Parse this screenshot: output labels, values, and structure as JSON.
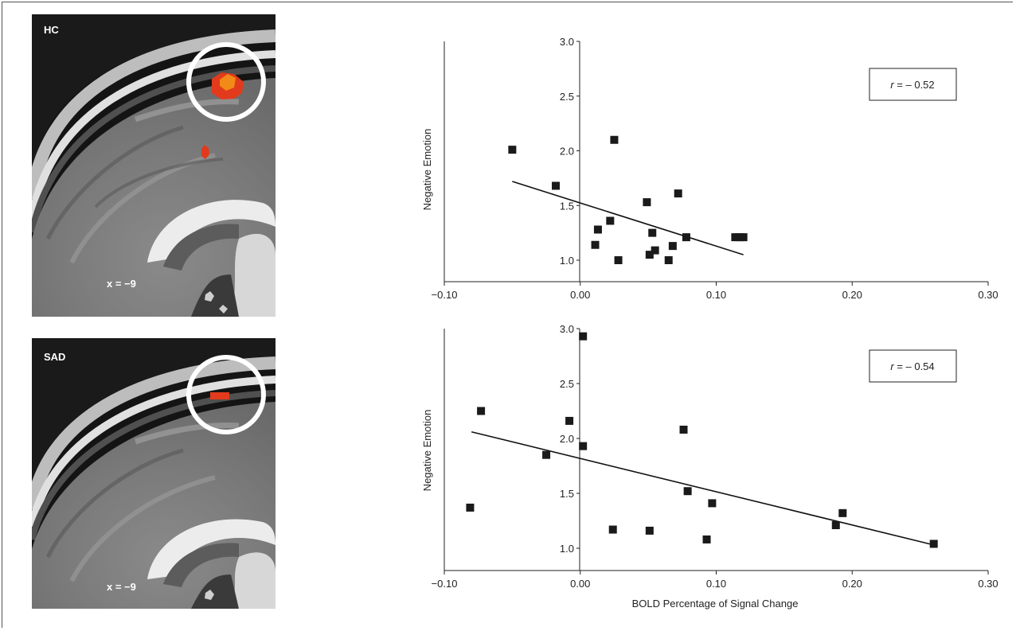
{
  "panels": [
    {
      "group_label": "HC",
      "coord_label": "x = −9"
    },
    {
      "group_label": "SAD",
      "coord_label": "x = −9"
    }
  ],
  "colors": {
    "activation_red": "#e23a1c",
    "activation_orange": "#f28a18",
    "marker": "#1a1a1a",
    "circle": "#ffffff"
  },
  "chart_data": [
    {
      "type": "scatter",
      "title": "",
      "group": "HC",
      "xlabel": "",
      "ylabel": "Negative Emotion",
      "xlim": [
        -0.1,
        0.3
      ],
      "ylim": [
        1.0,
        3.0
      ],
      "x_ticks": [
        "−0.10",
        "0.00",
        "0.10",
        "0.20",
        "0.30"
      ],
      "y_ticks": [
        "1.0",
        "1.5",
        "2.0",
        "2.5",
        "3.0"
      ],
      "annotation_prefix": "r",
      "annotation_value": " = – 0.52",
      "r": -0.52,
      "points": [
        [
          -0.05,
          2.01
        ],
        [
          -0.018,
          1.68
        ],
        [
          0.025,
          2.1
        ],
        [
          0.072,
          1.61
        ],
        [
          0.049,
          1.53
        ],
        [
          0.022,
          1.36
        ],
        [
          0.013,
          1.28
        ],
        [
          0.053,
          1.25
        ],
        [
          0.078,
          1.21
        ],
        [
          0.114,
          1.21
        ],
        [
          0.117,
          1.21
        ],
        [
          0.12,
          1.21
        ],
        [
          0.011,
          1.14
        ],
        [
          0.068,
          1.13
        ],
        [
          0.055,
          1.09
        ],
        [
          0.051,
          1.05
        ],
        [
          0.028,
          1.0
        ],
        [
          0.065,
          1.0
        ]
      ],
      "fit_line": [
        [
          -0.05,
          1.72
        ],
        [
          0.12,
          1.05
        ]
      ]
    },
    {
      "type": "scatter",
      "title": "",
      "group": "SAD",
      "xlabel": "BOLD Percentage of Signal Change",
      "ylabel": "Negative Emotion",
      "xlim": [
        -0.1,
        0.3
      ],
      "ylim": [
        1.0,
        3.0
      ],
      "x_ticks": [
        "−0.10",
        "0.00",
        "0.10",
        "0.20",
        "0.30"
      ],
      "y_ticks": [
        "1.0",
        "1.5",
        "2.0",
        "2.5",
        "3.0"
      ],
      "annotation_prefix": "r",
      "annotation_value": " = – 0.54",
      "r": -0.54,
      "points": [
        [
          0.002,
          2.93
        ],
        [
          -0.073,
          2.25
        ],
        [
          -0.008,
          2.16
        ],
        [
          0.076,
          2.08
        ],
        [
          0.002,
          1.93
        ],
        [
          -0.025,
          1.85
        ],
        [
          0.079,
          1.52
        ],
        [
          0.097,
          1.41
        ],
        [
          -0.081,
          1.37
        ],
        [
          0.193,
          1.32
        ],
        [
          0.188,
          1.21
        ],
        [
          0.024,
          1.17
        ],
        [
          0.051,
          1.16
        ],
        [
          0.093,
          1.08
        ],
        [
          0.26,
          1.04
        ]
      ],
      "fit_line": [
        [
          -0.08,
          2.06
        ],
        [
          0.26,
          1.03
        ]
      ]
    }
  ]
}
